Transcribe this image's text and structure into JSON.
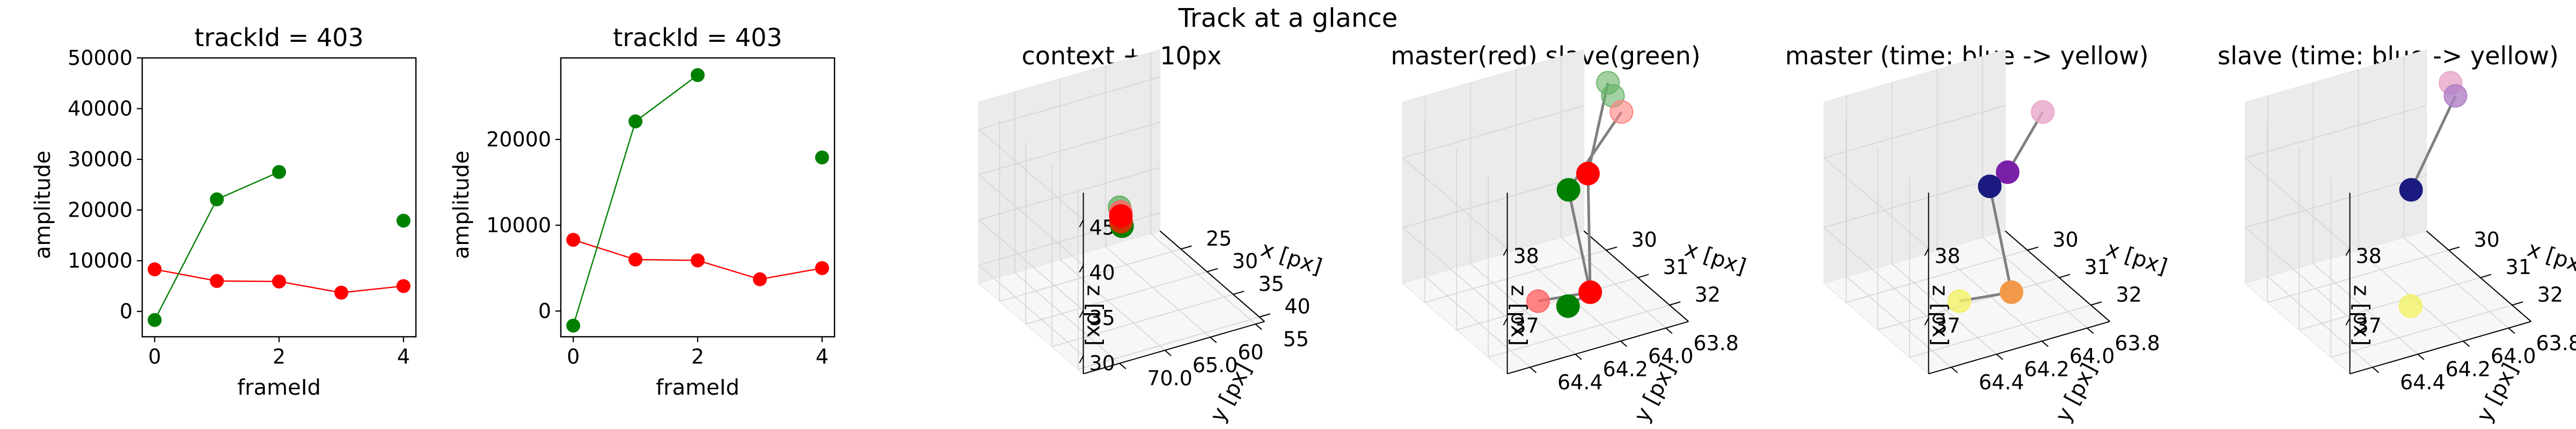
{
  "suptitle": "Track at a glance",
  "colors": {
    "master": "#ff0000",
    "slave": "#008000",
    "connector": "#808080",
    "time_start": "#00007f",
    "time_end": "#ffff66"
  },
  "chart_data": [
    {
      "type": "line",
      "title": "trackId = 403",
      "xlabel": "frameId",
      "ylabel": "amplitude",
      "xlim": [
        -0.2,
        4.2
      ],
      "ylim": [
        -5000,
        50000
      ],
      "xticks": [
        "0",
        "2",
        "4"
      ],
      "xtick_values": [
        0,
        2,
        4
      ],
      "yticks": [
        "0",
        "10000",
        "20000",
        "30000",
        "40000",
        "50000"
      ],
      "ytick_values": [
        0,
        10000,
        20000,
        30000,
        40000,
        50000
      ],
      "series": [
        {
          "name": "master",
          "color": "#ff0000",
          "x": [
            0,
            1,
            2,
            3,
            4
          ],
          "y": [
            8300,
            6000,
            5900,
            3700,
            5000
          ],
          "segments": [
            [
              0,
              1,
              2,
              3,
              4
            ]
          ]
        },
        {
          "name": "slave",
          "color": "#008000",
          "x": [
            0,
            1,
            2,
            4
          ],
          "y": [
            -1700,
            22100,
            27500,
            17900
          ],
          "segments": [
            [
              0,
              1,
              2
            ],
            [
              3
            ]
          ]
        }
      ]
    },
    {
      "type": "line",
      "title": "trackId = 403",
      "xlabel": "frameId",
      "ylabel": "amplitude",
      "xlim": [
        -0.2,
        4.2
      ],
      "ylim": [
        -3000,
        29500
      ],
      "xticks": [
        "0",
        "2",
        "4"
      ],
      "xtick_values": [
        0,
        2,
        4
      ],
      "yticks": [
        "0",
        "10000",
        "20000"
      ],
      "ytick_values": [
        0,
        10000,
        20000
      ],
      "series": [
        {
          "name": "master",
          "color": "#ff0000",
          "x": [
            0,
            1,
            2,
            3,
            4
          ],
          "y": [
            8300,
            6000,
            5900,
            3700,
            5000
          ],
          "segments": [
            [
              0,
              1,
              2,
              3,
              4
            ]
          ]
        },
        {
          "name": "slave",
          "color": "#008000",
          "x": [
            0,
            1,
            2,
            4
          ],
          "y": [
            -1700,
            22100,
            27500,
            17900
          ],
          "segments": [
            [
              0,
              1,
              2
            ],
            [
              3
            ]
          ]
        }
      ]
    },
    {
      "type": "scatter3d",
      "title": "context +- 10px",
      "xlabel": "x [px]",
      "ylabel": "y [px]",
      "zlabel": "z [px]",
      "xlim": [
        21,
        41
      ],
      "ylim": [
        54,
        74
      ],
      "zlim": [
        28,
        48
      ],
      "xticks": [
        25,
        30,
        35,
        40
      ],
      "yticks": [
        55,
        60,
        65,
        70
      ],
      "zticks": [
        30,
        35,
        40,
        45
      ],
      "points": [
        {
          "x": 30.6,
          "y": 64.0,
          "z": 38.3,
          "color": "#66b266",
          "alpha": 0.8
        },
        {
          "x": 31.0,
          "y": 64.1,
          "z": 38.0,
          "color": "#ff6666",
          "alpha": 0.8
        },
        {
          "x": 31.2,
          "y": 64.2,
          "z": 37.7,
          "color": "#ff0000",
          "alpha": 1
        },
        {
          "x": 31.4,
          "y": 64.3,
          "z": 37.2,
          "color": "#cc3300",
          "alpha": 1
        },
        {
          "x": 31.6,
          "y": 64.3,
          "z": 36.8,
          "color": "#008000",
          "alpha": 1
        }
      ],
      "lines": []
    },
    {
      "type": "scatter3d",
      "title": "master(red) slave(green)",
      "xlabel": "x [px]",
      "ylabel": "y [px]",
      "zlabel": "z [px]",
      "xlim": [
        29.3,
        32.6
      ],
      "ylim": [
        63.7,
        64.5
      ],
      "zlim": [
        36.2,
        38.8
      ],
      "xticks": [
        30,
        31,
        32
      ],
      "yticks": [
        63.8,
        64.0,
        64.2,
        64.4
      ],
      "zticks": [
        37,
        38
      ],
      "points": [
        {
          "x": 30.2,
          "y": 63.72,
          "z": 38.7,
          "color": "#66b266",
          "alpha": 0.6
        },
        {
          "x": 30.5,
          "y": 63.74,
          "z": 38.65,
          "color": "#66b266",
          "alpha": 0.6
        },
        {
          "x": 31.2,
          "y": 63.8,
          "z": 38.75,
          "color": "#ff8080",
          "alpha": 0.6
        },
        {
          "x": 31.0,
          "y": 63.92,
          "z": 37.9,
          "color": "#ff0000",
          "alpha": 1
        },
        {
          "x": 31.1,
          "y": 64.02,
          "z": 37.8,
          "color": "#008000",
          "alpha": 1
        },
        {
          "x": 31.5,
          "y": 63.98,
          "z": 36.45,
          "color": "#ff0000",
          "alpha": 1
        },
        {
          "x": 32.0,
          "y": 64.28,
          "z": 36.8,
          "color": "#ff6666",
          "alpha": 0.8
        },
        {
          "x": 31.8,
          "y": 64.12,
          "z": 36.5,
          "color": "#008000",
          "alpha": 1
        }
      ],
      "lines": [
        [
          0,
          3
        ],
        [
          2,
          4
        ],
        [
          3,
          5
        ],
        [
          4,
          5
        ],
        [
          5,
          6
        ],
        [
          5,
          7
        ]
      ]
    },
    {
      "type": "scatter3d",
      "title": "master (time: blue -> yellow)",
      "xlabel": "x [px]",
      "ylabel": "y [px]",
      "zlabel": "z [px]",
      "xlim": [
        29.3,
        32.6
      ],
      "ylim": [
        63.7,
        64.5
      ],
      "zlim": [
        36.2,
        38.8
      ],
      "xticks": [
        30,
        31,
        32
      ],
      "yticks": [
        63.8,
        64.0,
        64.2,
        64.4
      ],
      "zticks": [
        37,
        38
      ],
      "points": [
        {
          "x": 31.2,
          "y": 63.8,
          "z": 38.75,
          "color": "#e8a6c8",
          "alpha": 0.8
        },
        {
          "x": 30.95,
          "y": 63.92,
          "z": 37.9,
          "color": "#7a1fa8",
          "alpha": 1
        },
        {
          "x": 31.1,
          "y": 64.02,
          "z": 37.85,
          "color": "#1a1a80",
          "alpha": 1
        },
        {
          "x": 31.5,
          "y": 63.98,
          "z": 36.45,
          "color": "#f29a4a",
          "alpha": 1
        },
        {
          "x": 32.0,
          "y": 64.28,
          "z": 36.8,
          "color": "#f2f266",
          "alpha": 0.8
        }
      ],
      "lines": [
        [
          0,
          1
        ],
        [
          1,
          2
        ],
        [
          2,
          3
        ],
        [
          3,
          4
        ]
      ]
    },
    {
      "type": "scatter3d",
      "title": "slave (time: blue -> yellow)",
      "xlabel": "x [px]",
      "ylabel": "y [px]",
      "zlabel": "z [px]",
      "xlim": [
        29.3,
        32.6
      ],
      "ylim": [
        63.7,
        64.5
      ],
      "zlim": [
        36.2,
        38.8
      ],
      "xticks": [
        30,
        31,
        32
      ],
      "yticks": [
        63.8,
        64.0,
        64.2,
        64.4
      ],
      "zticks": [
        37,
        38
      ],
      "points": [
        {
          "x": 30.2,
          "y": 63.72,
          "z": 38.7,
          "color": "#e8a6c8",
          "alpha": 0.8
        },
        {
          "x": 30.5,
          "y": 63.74,
          "z": 38.65,
          "color": "#b080c8",
          "alpha": 0.8
        },
        {
          "x": 31.1,
          "y": 64.02,
          "z": 37.8,
          "color": "#1a1a80",
          "alpha": 1
        },
        {
          "x": 31.8,
          "y": 64.12,
          "z": 36.5,
          "color": "#f2f266",
          "alpha": 0.8
        }
      ],
      "lines": [
        [
          1,
          2
        ]
      ]
    }
  ]
}
